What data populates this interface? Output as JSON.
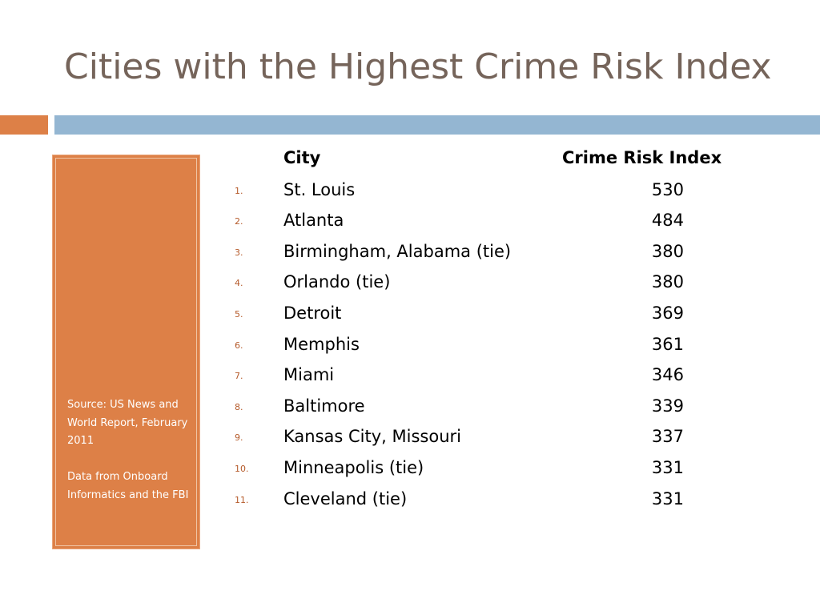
{
  "slide": {
    "title": "Cities with the Highest Crime Risk Index",
    "accent_orange": "#dd8047",
    "accent_blue": "#94b6d2",
    "title_color": "#75645a"
  },
  "sidebar": {
    "source_line": "Source: US News and World Report, February 2011",
    "data_line": "Data from Onboard Informatics and the FBI"
  },
  "table": {
    "headers": {
      "city": "City",
      "index": "Crime Risk Index"
    },
    "rows": [
      {
        "rank": "1.",
        "city": "St. Louis",
        "value": "530"
      },
      {
        "rank": "2.",
        "city": "Atlanta",
        "value": "484"
      },
      {
        "rank": "3.",
        "city": "Birmingham, Alabama (tie)",
        "value": "380"
      },
      {
        "rank": "4.",
        "city": "Orlando (tie)",
        "value": "380"
      },
      {
        "rank": "5.",
        "city": "Detroit",
        "value": "369"
      },
      {
        "rank": "6.",
        "city": "Memphis",
        "value": "361"
      },
      {
        "rank": "7.",
        "city": "Miami",
        "value": "346"
      },
      {
        "rank": "8.",
        "city": "Baltimore",
        "value": "339"
      },
      {
        "rank": "9.",
        "city": "Kansas City, Missouri",
        "value": "337"
      },
      {
        "rank": "10.",
        "city": "Minneapolis (tie)",
        "value": "331"
      },
      {
        "rank": "11.",
        "city": "Cleveland (tie)",
        "value": "331"
      }
    ]
  }
}
